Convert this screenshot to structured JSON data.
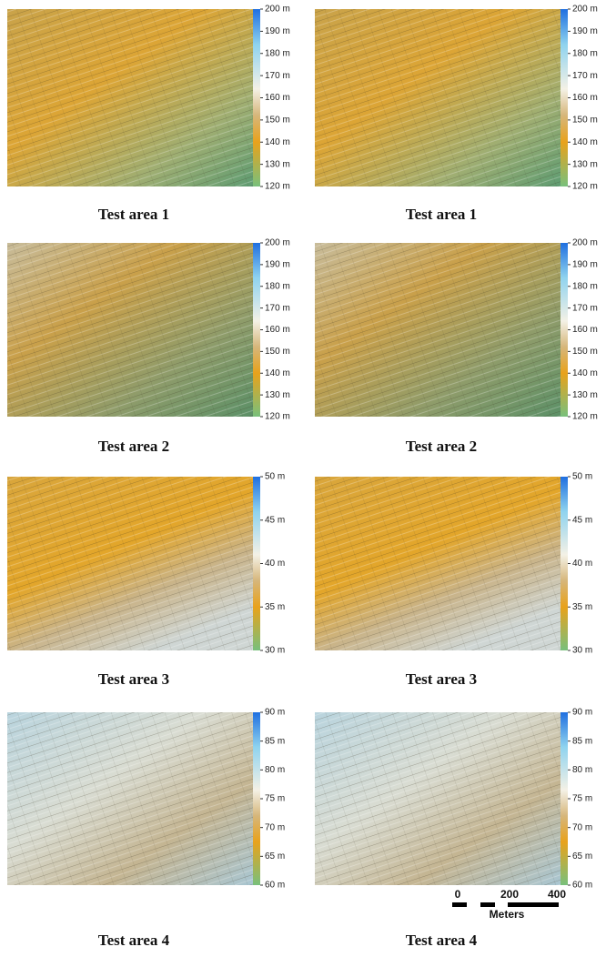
{
  "panels": [
    {
      "caption": "Test area 1",
      "colorbar": [
        "200 m",
        "190 m",
        "180 m",
        "170 m",
        "160 m",
        "150 m",
        "140 m",
        "130 m",
        "120 m"
      ]
    },
    {
      "caption": "Test area 1",
      "colorbar": [
        "200 m",
        "190 m",
        "180 m",
        "170 m",
        "160 m",
        "150 m",
        "140 m",
        "130 m",
        "120 m"
      ]
    },
    {
      "caption": "Test area 2",
      "colorbar": [
        "200 m",
        "190 m",
        "180 m",
        "170 m",
        "160 m",
        "150 m",
        "140 m",
        "130 m",
        "120 m"
      ]
    },
    {
      "caption": "Test area 2",
      "colorbar": [
        "200 m",
        "190 m",
        "180 m",
        "170 m",
        "160 m",
        "150 m",
        "140 m",
        "130 m",
        "120 m"
      ]
    },
    {
      "caption": "Test area 3",
      "colorbar": [
        "50 m",
        "45 m",
        "40 m",
        "35 m",
        "30 m"
      ]
    },
    {
      "caption": "Test area 3",
      "colorbar": [
        "50 m",
        "45 m",
        "40 m",
        "35 m",
        "30 m"
      ]
    },
    {
      "caption": "Test area 4",
      "colorbar": [
        "90 m",
        "85 m",
        "80 m",
        "75 m",
        "70 m",
        "65 m",
        "60 m"
      ]
    },
    {
      "caption": "Test area 4",
      "colorbar": [
        "90 m",
        "85 m",
        "80 m",
        "75 m",
        "70 m",
        "65 m",
        "60 m"
      ]
    }
  ],
  "scale_bar": {
    "labels": [
      "0",
      "200",
      "400"
    ],
    "unit": "Meters"
  }
}
